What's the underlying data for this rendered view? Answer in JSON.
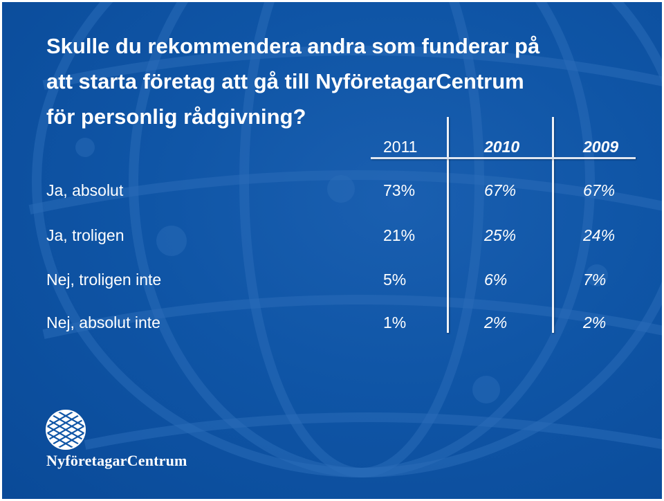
{
  "title_lines": [
    "Skulle du rekommendera andra som funderar på",
    "att starta företag att gå till  NyföretagarCentrum",
    "för personlig rådgivning?"
  ],
  "chart_data": {
    "type": "table",
    "columns": [
      "2011",
      "2010",
      "2009"
    ],
    "rows": [
      {
        "label": "Ja, absolut",
        "values": [
          "73%",
          "67%",
          "67%"
        ]
      },
      {
        "label": "Ja, troligen",
        "values": [
          "21%",
          "25%",
          "24%"
        ]
      },
      {
        "label": "Nej, troligen inte",
        "values": [
          "5%",
          "6%",
          "7%"
        ]
      },
      {
        "label": "Nej, absolut inte",
        "values": [
          "1%",
          "2%",
          "2%"
        ]
      }
    ]
  },
  "logo_text": "NyföretagarCentrum",
  "colors": {
    "background": "#0f55a6",
    "text": "#ffffff"
  }
}
